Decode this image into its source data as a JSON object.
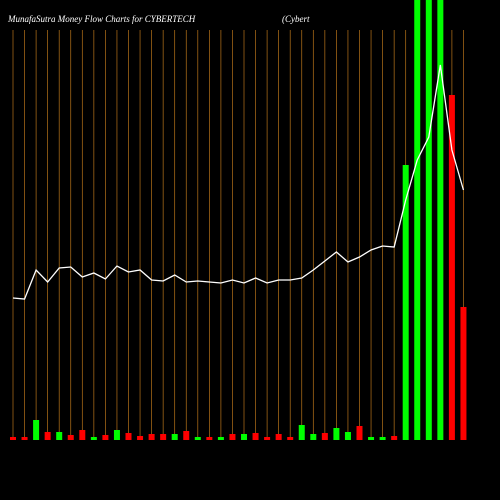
{
  "chart_data": {
    "type": "bar-line",
    "title": "MunafaSutra  Money Flow  Charts for CYBERTECH",
    "subtitle": "(Cybert",
    "categories": [
      null,
      null,
      null,
      null,
      null,
      null,
      null,
      null,
      null,
      null,
      null,
      null,
      null,
      null,
      null,
      null,
      null,
      null,
      null,
      null,
      null,
      null,
      null,
      null,
      null,
      null,
      null,
      null,
      null,
      null,
      null,
      null,
      null,
      null,
      null,
      null,
      null,
      null,
      null,
      null
    ],
    "values": [
      3,
      3,
      20,
      8,
      8,
      5,
      10,
      3,
      5,
      10,
      7,
      4,
      6,
      6,
      6,
      9,
      3,
      3,
      3,
      6,
      6,
      7,
      3,
      6,
      3,
      15,
      6,
      7,
      12,
      8,
      14,
      3,
      3,
      4,
      275,
      440,
      440,
      440,
      345,
      133
    ],
    "colors": [
      "#ff0000",
      "#ff0000",
      "#00ff00",
      "#ff0000",
      "#00ff00",
      "#ff0000",
      "#ff0000",
      "#00ff00",
      "#ff0000",
      "#00ff00",
      "#ff0000",
      "#ff0000",
      "#ff0000",
      "#ff0000",
      "#00ff00",
      "#ff0000",
      "#00ff00",
      "#ff0000",
      "#00ff00",
      "#ff0000",
      "#00ff00",
      "#ff0000",
      "#ff0000",
      "#ff0000",
      "#ff0000",
      "#00ff00",
      "#00ff00",
      "#ff0000",
      "#00ff00",
      "#00ff00",
      "#ff0000",
      "#00ff00",
      "#00ff00",
      "#ff0000",
      "#00ff00",
      "#00ff00",
      "#00ff00",
      "#00ff00",
      "#ff0000",
      "#ff0000"
    ],
    "line": [
      142,
      141,
      170,
      158,
      172,
      173,
      163,
      167,
      161,
      174,
      168,
      170,
      160,
      159,
      165,
      158,
      159,
      158,
      157,
      160,
      157,
      162,
      157,
      160,
      160,
      162,
      170,
      179,
      188,
      178,
      183,
      190,
      194,
      193,
      240,
      280,
      303,
      375,
      290,
      250
    ],
    "line_color": "#ffffff",
    "grid_color": "#b8741a",
    "ylim": [
      0,
      440
    ]
  }
}
